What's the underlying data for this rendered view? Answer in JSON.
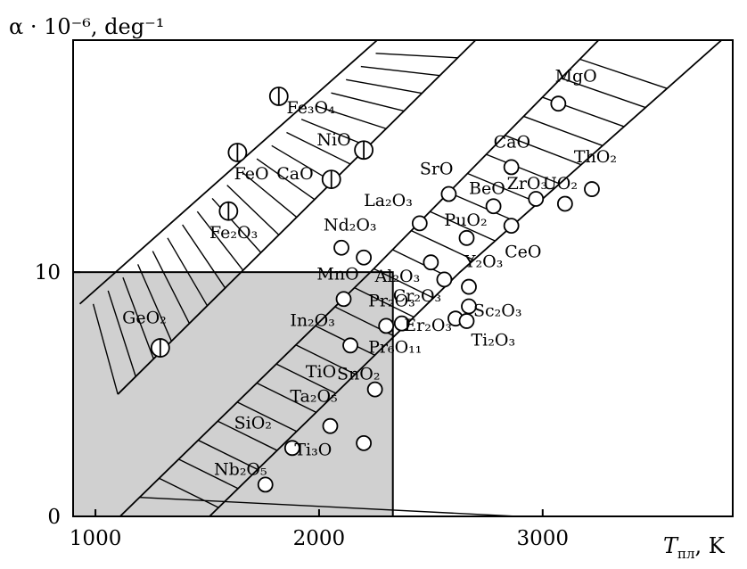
{
  "chart_data": {
    "type": "scatter",
    "ylabel": "α · 10⁻⁶, deg⁻¹",
    "xlabel_main": "T",
    "xlabel_sub": "пл",
    "xlabel_unit": ", K",
    "xlim": [
      900,
      3850
    ],
    "ylim": [
      0,
      19.5
    ],
    "x_ticks": [
      1000,
      2000,
      3000
    ],
    "y_ticks": [
      0,
      10
    ],
    "x_tick_labels": [
      "1000",
      "2000",
      "3000"
    ],
    "y_tick_labels": [
      "0",
      "10"
    ],
    "shaded_region": {
      "x": [
        900,
        2330
      ],
      "y": [
        0,
        10
      ]
    },
    "zones": [
      {
        "name": "upper-band",
        "lower_edge": [
          [
            1100,
            5
          ],
          [
            2700,
            19.5
          ]
        ],
        "upper_edge": [
          [
            930,
            8.7
          ],
          [
            2260,
            19.5
          ]
        ]
      },
      {
        "name": "lower-band",
        "upper_edge": [
          [
            1110,
            0
          ],
          [
            2230,
            10
          ],
          [
            3250,
            19.5
          ]
        ],
        "lower_edge": [
          [
            1510,
            0
          ],
          [
            2630,
            10
          ],
          [
            3800,
            19.5
          ]
        ]
      }
    ],
    "points": [
      {
        "name": "Fe₃O₄",
        "x": 1820,
        "y": 17.2,
        "type": "barred"
      },
      {
        "name": "FeO",
        "x": 1635,
        "y": 14.9,
        "type": "barred"
      },
      {
        "name": "Fe₂O₃",
        "x": 1595,
        "y": 12.5,
        "type": "barred"
      },
      {
        "name": "NiO",
        "x": 2200,
        "y": 15.0,
        "type": "barred"
      },
      {
        "name": "CaO",
        "x": 2055,
        "y": 13.8,
        "type": "barred"
      },
      {
        "name": "GeO₂",
        "x": 1290,
        "y": 6.9,
        "type": "barred"
      },
      {
        "name": "MgO",
        "x": 3070,
        "y": 16.9,
        "type": "open"
      },
      {
        "name": "CaO",
        "x": 2860,
        "y": 14.3,
        "type": "open"
      },
      {
        "name": "SrO",
        "x": 2580,
        "y": 13.2,
        "type": "open"
      },
      {
        "name": "ThO₂",
        "x": 3220,
        "y": 13.4,
        "type": "open"
      },
      {
        "name": "BeO",
        "x": 2780,
        "y": 12.7,
        "type": "open"
      },
      {
        "name": "ZrO₃",
        "x": 2970,
        "y": 13.0,
        "type": "open"
      },
      {
        "name": "UO₂",
        "x": 3100,
        "y": 12.8,
        "type": "open"
      },
      {
        "name": "La₂O₃",
        "x": 2450,
        "y": 12.0,
        "type": "open"
      },
      {
        "name": "PuO₂",
        "x": 2660,
        "y": 11.4,
        "type": "open"
      },
      {
        "name": "CeO",
        "x": 2860,
        "y": 11.9,
        "type": "open"
      },
      {
        "name": "Nd₂O₃",
        "x": 2100,
        "y": 11.0,
        "type": "open"
      },
      {
        "name": "MnO",
        "x": 2200,
        "y": 10.6,
        "type": "open"
      },
      {
        "name": "Y₂O₃",
        "x": 2670,
        "y": 9.4,
        "type": "open"
      },
      {
        "name": "Al₂O₃",
        "x": 2500,
        "y": 10.4,
        "type": "open"
      },
      {
        "name": "Cr₂O₃",
        "x": 2560,
        "y": 9.7,
        "type": "open"
      },
      {
        "name": "Sc₂O₃",
        "x": 2670,
        "y": 8.6,
        "type": "open"
      },
      {
        "name": "Er₂O₃",
        "x": 2610,
        "y": 8.1,
        "type": "open"
      },
      {
        "name": "Ti₂O₃",
        "x": 2660,
        "y": 8.0,
        "type": "open"
      },
      {
        "name": "In₂O₃",
        "x": 2110,
        "y": 8.9,
        "type": "open"
      },
      {
        "name": "Pr₂O₃",
        "x": 2300,
        "y": 7.8,
        "type": "open"
      },
      {
        "name": "Pr₆O₁₁",
        "x": 2370,
        "y": 7.9,
        "type": "open"
      },
      {
        "name": "TiO",
        "x": 2140,
        "y": 7.0,
        "type": "open"
      },
      {
        "name": "SnO₂",
        "x": 2250,
        "y": 5.2,
        "type": "open"
      },
      {
        "name": "Ta₂O₅",
        "x": 2050,
        "y": 3.7,
        "type": "open"
      },
      {
        "name": "SiO₂",
        "x": 1880,
        "y": 2.8,
        "type": "open"
      },
      {
        "name": "Ti₃O",
        "x": 2200,
        "y": 3.0,
        "type": "open"
      },
      {
        "name": "Nb₂O₅",
        "x": 1760,
        "y": 1.3,
        "type": "open"
      }
    ],
    "labels": [
      {
        "text": "Fe₃O₄",
        "x": 1855,
        "y": 16.5,
        "anchor": "start"
      },
      {
        "text": "FeO",
        "x": 1620,
        "y": 13.8,
        "anchor": "start"
      },
      {
        "text": "Fe₂O₃",
        "x": 1510,
        "y": 11.4,
        "anchor": "start"
      },
      {
        "text": "NiO",
        "x": 1990,
        "y": 15.2,
        "anchor": "start"
      },
      {
        "text": "CaO",
        "x": 1810,
        "y": 13.8,
        "anchor": "start"
      },
      {
        "text": "GeO₂",
        "x": 1120,
        "y": 7.9,
        "anchor": "start"
      },
      {
        "text": "MgO",
        "x": 3055,
        "y": 17.8,
        "anchor": "start"
      },
      {
        "text": "CaO",
        "x": 2780,
        "y": 15.1,
        "anchor": "start"
      },
      {
        "text": "SrO",
        "x": 2450,
        "y": 14.0,
        "anchor": "start"
      },
      {
        "text": "ThO₂",
        "x": 3140,
        "y": 14.5,
        "anchor": "start"
      },
      {
        "text": "BeO",
        "x": 2670,
        "y": 13.2,
        "anchor": "start"
      },
      {
        "text": "ZrO₃",
        "x": 2840,
        "y": 13.4,
        "anchor": "start"
      },
      {
        "text": "UO₂",
        "x": 3000,
        "y": 13.4,
        "anchor": "start"
      },
      {
        "text": "La₂O₃",
        "x": 2200,
        "y": 12.7,
        "anchor": "start"
      },
      {
        "text": "PuO₂",
        "x": 2560,
        "y": 11.9,
        "anchor": "start"
      },
      {
        "text": "CeO",
        "x": 2830,
        "y": 10.6,
        "anchor": "start"
      },
      {
        "text": "Nd₂O₃",
        "x": 2020,
        "y": 11.7,
        "anchor": "start"
      },
      {
        "text": "MnO",
        "x": 1990,
        "y": 9.7,
        "anchor": "start"
      },
      {
        "text": "Y₂O₃",
        "x": 2650,
        "y": 10.2,
        "anchor": "start"
      },
      {
        "text": "Al₂O₃",
        "x": 2250,
        "y": 9.6,
        "anchor": "start"
      },
      {
        "text": "Cr₂O₃",
        "x": 2330,
        "y": 8.8,
        "anchor": "start"
      },
      {
        "text": "Sc₂O₃",
        "x": 2690,
        "y": 8.2,
        "anchor": "start"
      },
      {
        "text": "Er₂O₃",
        "x": 2380,
        "y": 7.6,
        "anchor": "start"
      },
      {
        "text": "Ti₂O₃",
        "x": 2680,
        "y": 7.0,
        "anchor": "start"
      },
      {
        "text": "In₂O₃",
        "x": 1870,
        "y": 7.8,
        "anchor": "start"
      },
      {
        "text": "Pr₂O₃",
        "x": 2220,
        "y": 8.6,
        "anchor": "start"
      },
      {
        "text": "Pr₆O₁₁",
        "x": 2220,
        "y": 6.7,
        "anchor": "start"
      },
      {
        "text": "TiO",
        "x": 1940,
        "y": 5.7,
        "anchor": "start"
      },
      {
        "text": "SnO₂",
        "x": 2080,
        "y": 5.6,
        "anchor": "start"
      },
      {
        "text": "Ta₂O₅",
        "x": 1870,
        "y": 4.7,
        "anchor": "start"
      },
      {
        "text": "SiO₂",
        "x": 1620,
        "y": 3.6,
        "anchor": "start"
      },
      {
        "text": "Ti₃O",
        "x": 1890,
        "y": 2.5,
        "anchor": "start"
      },
      {
        "text": "Nb₂O₅",
        "x": 1530,
        "y": 1.7,
        "anchor": "start"
      }
    ]
  }
}
